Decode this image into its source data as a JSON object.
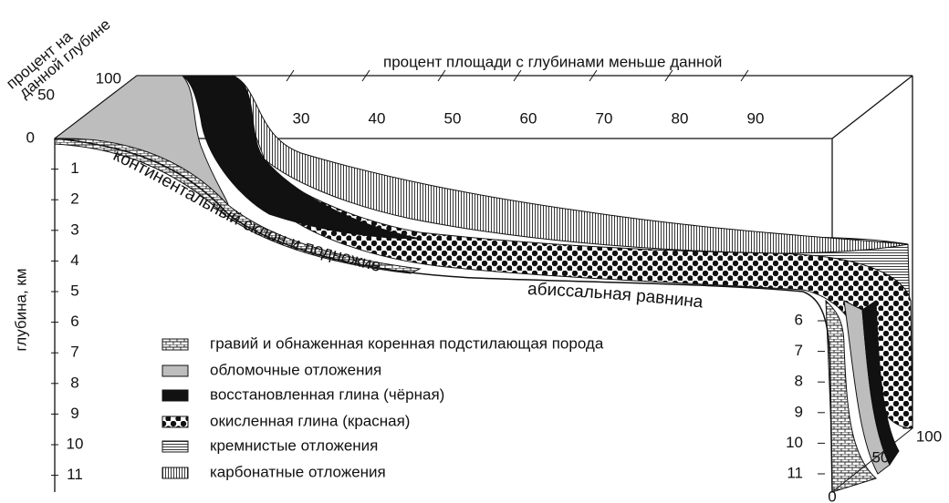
{
  "left_axis": {
    "title": [
      "процент на",
      "данной глубине"
    ],
    "ticks": [
      "100",
      "50",
      "0"
    ]
  },
  "top_axis": {
    "title": "процент площади с глубинами меньше данной",
    "ticks": [
      "30",
      "40",
      "50",
      "60",
      "70",
      "80",
      "90"
    ]
  },
  "depth_axis": {
    "title": "глубина, км",
    "ticks": [
      "1",
      "2",
      "3",
      "4",
      "5",
      "6",
      "7",
      "8",
      "9",
      "10",
      "11"
    ]
  },
  "right_depth_axis": {
    "ticks": [
      "6",
      "7",
      "8",
      "9",
      "10",
      "11"
    ]
  },
  "right_percent_axis": {
    "ticks": [
      "0",
      "50",
      "100"
    ]
  },
  "annotations": [
    "континентальный склон и подножие",
    "абиссальная равнина"
  ],
  "legend": [
    {
      "label": "гравий и обнаженная коренная подстилающая порода",
      "pattern": "bricks"
    },
    {
      "label": "обломочные отложения",
      "pattern": "gray"
    },
    {
      "label": "восстановленная глина (чёрная)",
      "pattern": "black"
    },
    {
      "label": "окисленная глина (красная)",
      "pattern": "dots"
    },
    {
      "label": "кремнистые отложения",
      "pattern": "hlines"
    },
    {
      "label": "карбонатные отложения",
      "pattern": "vlines"
    }
  ]
}
